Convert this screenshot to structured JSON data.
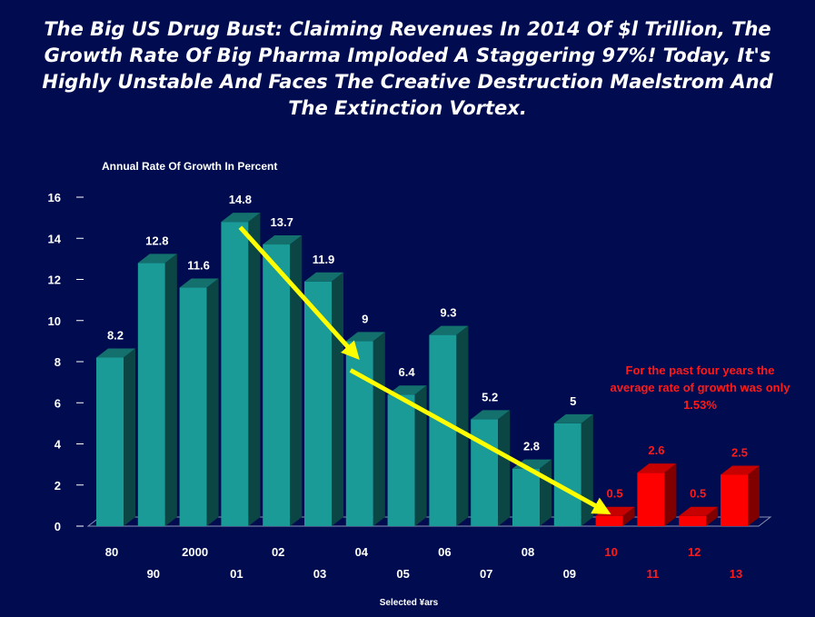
{
  "title": "The Big US Drug Bust: Claiming Revenues In 2014 Of $l Trillion, The Growth Rate Of Big Pharma Imploded A Staggering 97%!  Today, It's Highly Unstable And Faces The Creative Destruction Maelstrom And The Extinction Vortex.",
  "note": "For the past four years the average rate of growth was only 1.53%",
  "colors": {
    "background": "#000c4f",
    "bar_teal": "#1b9b97",
    "bar_red": "#ff0000",
    "arrow": "#ffff00",
    "text": "#ffffff",
    "text_red": "#ff1a1a"
  },
  "chart_data": {
    "type": "bar",
    "title": "The Big US Drug Bust: Claiming Revenues In 2014 Of $l Trillion, The Growth Rate Of Big Pharma Imploded A Staggering 97%!  Today, It's Highly Unstable And Faces The Creative Destruction Maelstrom And The Extinction Vortex.",
    "ylabel": "Annual Rate Of Growth In Percent",
    "xlabel": "Selected ¥ars",
    "ylim": [
      0,
      16
    ],
    "yticks": [
      0,
      2,
      4,
      6,
      8,
      10,
      12,
      14,
      16
    ],
    "categories": [
      "80",
      "90",
      "2000",
      "01",
      "02",
      "03",
      "04",
      "05",
      "06",
      "07",
      "08",
      "09",
      "10",
      "11",
      "12",
      "13"
    ],
    "values": [
      8.2,
      12.8,
      11.6,
      14.8,
      13.7,
      11.9,
      9,
      6.4,
      9.3,
      5.2,
      2.8,
      5,
      0.5,
      2.6,
      0.5,
      2.5
    ],
    "value_labels": [
      "8.2",
      "12.8",
      "11.6",
      "14.8",
      "13.7",
      "11.9",
      "9",
      "6.4",
      "9.3",
      "5.2",
      "2.8",
      "5",
      "0.5",
      "2.6",
      "0.5",
      "2.5"
    ],
    "highlight_from_index": 12,
    "grid": false,
    "annotations": [
      "downward trend arrow 01 to 04",
      "downward trend arrow 04 to 10"
    ]
  }
}
